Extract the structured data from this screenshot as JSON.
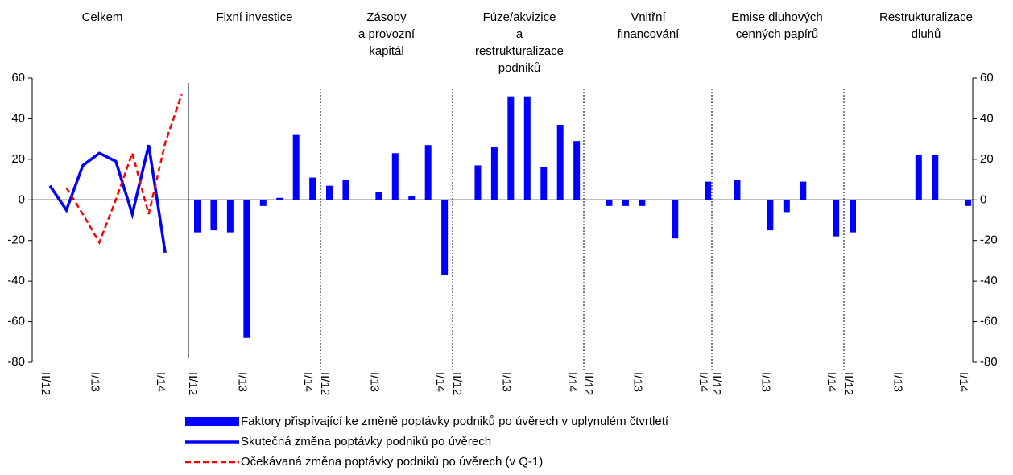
{
  "chart_data": [
    {
      "type": "line",
      "title": [
        "Celkem"
      ],
      "categories": [
        "II/12",
        null,
        null,
        "I/13",
        null,
        null,
        null,
        "I/14",
        null
      ],
      "series": [
        {
          "name": "Skutečná změna poptávky podniků po úvěrech",
          "color": "#0000ff",
          "dash": false,
          "values": [
            7,
            -5,
            17,
            23,
            19,
            -7,
            27,
            -26,
            null
          ]
        },
        {
          "name": "Očekávaná změna poptávky podniků po úvěrech (v Q-1)",
          "color": "#ff0000",
          "dash": true,
          "values": [
            null,
            6,
            -7,
            -21,
            0,
            23,
            -7,
            28,
            52
          ]
        }
      ],
      "ylim": [
        -80,
        60
      ],
      "yticks": [
        -80,
        -60,
        -40,
        -20,
        0,
        20,
        40,
        60
      ]
    },
    {
      "type": "bar",
      "name": "Faktory přispívající ke změně poptávky podniků po úvěrech v uplynulém čtvrtletí",
      "color": "#0000ff",
      "categories": [
        "II/12",
        null,
        null,
        "I/13",
        null,
        null,
        null,
        "I/14"
      ],
      "panels": [
        {
          "title": [
            "Fixní investice"
          ],
          "values": [
            -16,
            -15,
            -16,
            -68,
            -3,
            1,
            32,
            11
          ]
        },
        {
          "title": [
            "Zásoby",
            "a provozní",
            "kapitál"
          ],
          "values": [
            7,
            10,
            0,
            4,
            23,
            2,
            27,
            -37
          ]
        },
        {
          "title": [
            "Fúze/akvizice",
            "a",
            "restrukturalizace",
            "podniků"
          ],
          "values": [
            0,
            17,
            26,
            51,
            51,
            16,
            37,
            29
          ]
        },
        {
          "title": [
            "Vnitřní",
            "financování"
          ],
          "values": [
            0,
            -3,
            -3,
            -3,
            0,
            -19,
            0,
            9
          ]
        },
        {
          "title": [
            "Emise dluhových",
            "cenných papírů"
          ],
          "values": [
            0,
            10,
            0,
            -15,
            -6,
            9,
            0,
            -18
          ]
        },
        {
          "title": [
            "Restrukturalizace",
            "dluhů"
          ],
          "values": [
            -16,
            0,
            0,
            0,
            22,
            22,
            0,
            -3
          ]
        }
      ],
      "ylim": [
        -80,
        60
      ],
      "yticks": [
        -80,
        -60,
        -40,
        -20,
        0,
        20,
        40,
        60
      ]
    }
  ]
}
